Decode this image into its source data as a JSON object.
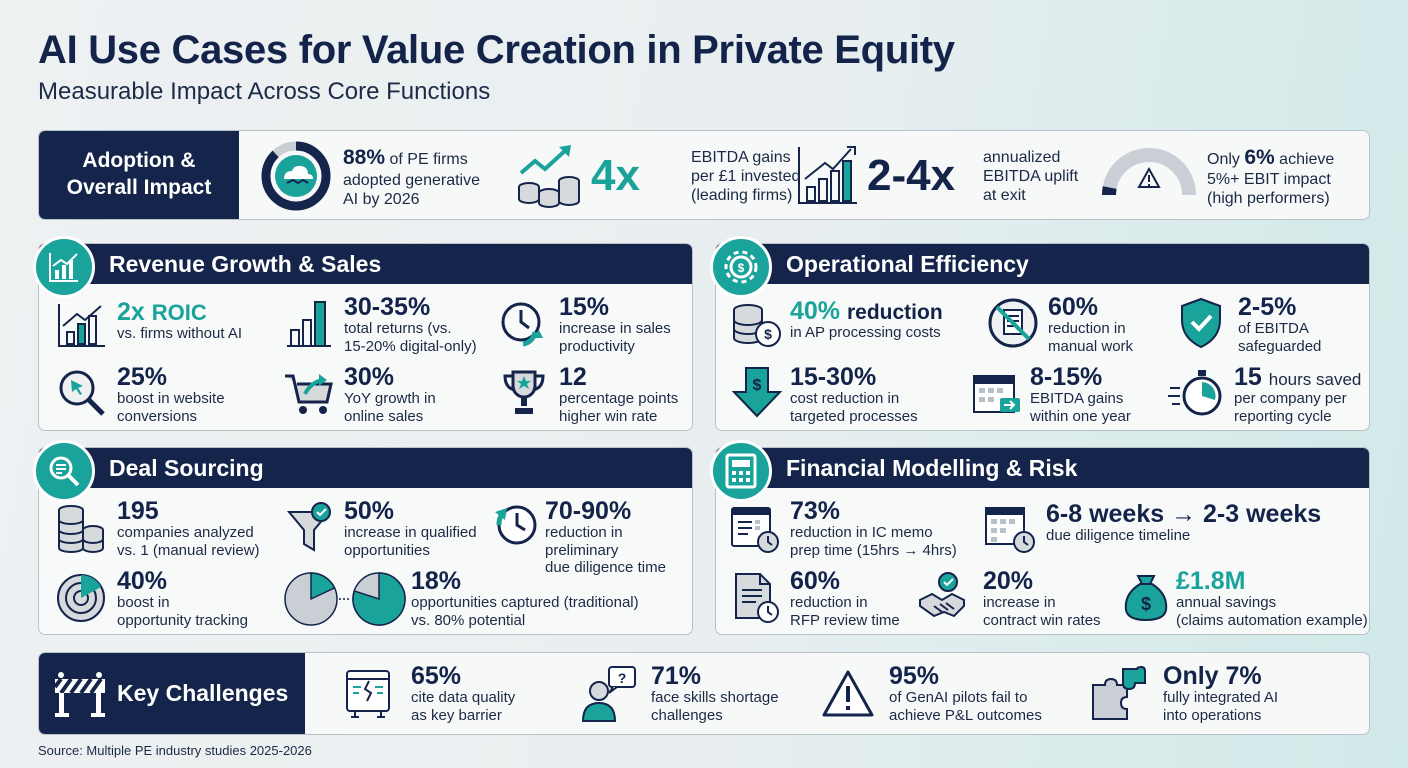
{
  "header": {
    "title": "AI Use Cases for Value Creation in Private Equity",
    "subtitle": "Measurable Impact Across Core Functions"
  },
  "colors": {
    "navy": "#14244a",
    "teal": "#1aa39a",
    "light": "#f8f9f9"
  },
  "adoption": {
    "label": "Adoption & Overall Impact",
    "stats": [
      {
        "icon": "cloud-handshake-icon",
        "value": "88%",
        "text_a": "of PE firms",
        "text_b": "adopted generative",
        "text_c": "AI by 2026",
        "progress": 0.88
      },
      {
        "icon": "coins-growth-icon",
        "value": "4x",
        "text_a": "EBITDA gains",
        "text_b": "per £1 invested",
        "text_c": "(leading firms)"
      },
      {
        "icon": "bar-chart-growth-icon",
        "value": "2-4x",
        "text_a": "annualized",
        "text_b": "EBITDA uplift",
        "text_c": "at exit"
      },
      {
        "icon": "warning-gauge-icon",
        "value_prefix": "Only",
        "value": "6%",
        "value_suffix": "achieve",
        "text_b": "5%+ EBIT impact",
        "text_c": "(high performers)",
        "progress": 0.06
      }
    ]
  },
  "revenue": {
    "title": "Revenue Growth & Sales",
    "items": [
      {
        "icon": "growth-chart-icon",
        "value": "2x",
        "value_b": "ROIC",
        "desc_a": "vs. firms without AI"
      },
      {
        "icon": "bar-chart-icon",
        "value": "30-35%",
        "desc_a": "total returns (vs.",
        "desc_b": "15-20% digital-only)"
      },
      {
        "icon": "clock-refresh-icon",
        "value": "15%",
        "desc_a": "increase in sales",
        "desc_b": "productivity"
      },
      {
        "icon": "magnifier-cursor-icon",
        "value": "25%",
        "desc_a": "boost in website",
        "desc_b": "conversions"
      },
      {
        "icon": "shopping-cart-icon",
        "value": "30%",
        "desc_a": "YoY growth in",
        "desc_b": "online sales"
      },
      {
        "icon": "trophy-icon",
        "value": "12",
        "desc_a": "percentage points",
        "desc_b": "higher win rate"
      }
    ]
  },
  "operations": {
    "title": "Operational Efficiency",
    "items": [
      {
        "icon": "coin-stack-dollar-icon",
        "value": "40%",
        "value_b": "reduction",
        "desc_a": "in AP processing costs"
      },
      {
        "icon": "no-paperwork-icon",
        "value": "60%",
        "desc_a": "reduction in",
        "desc_b": "manual work"
      },
      {
        "icon": "shield-check-icon",
        "value": "2-5%",
        "desc_a": "of EBITDA",
        "desc_b": "safeguarded"
      },
      {
        "icon": "dollar-down-icon",
        "value": "15-30%",
        "desc_a": "cost reduction in",
        "desc_b": "targeted processes"
      },
      {
        "icon": "calendar-arrow-icon",
        "value": "8-15%",
        "desc_a": "EBITDA gains",
        "desc_b": "within one year"
      },
      {
        "icon": "stopwatch-icon",
        "value": "15",
        "value_b": "hours saved",
        "desc_a": "per company per",
        "desc_b": "reporting cycle"
      }
    ]
  },
  "sourcing": {
    "title": "Deal Sourcing",
    "items": [
      {
        "icon": "coin-stacks-icon",
        "value": "195",
        "desc_a": "companies analyzed",
        "desc_b": "vs. 1 (manual review)"
      },
      {
        "icon": "funnel-check-icon",
        "value": "50%",
        "desc_a": "increase in qualified",
        "desc_b": "opportunities"
      },
      {
        "icon": "clock-rewind-icon",
        "value": "70-90%",
        "desc_a": "reduction in preliminary",
        "desc_b": "due diligence time"
      },
      {
        "icon": "radar-icon",
        "value": "40%",
        "desc_a": "boost in",
        "desc_b": "opportunity tracking"
      },
      {
        "icon": "pie-compare-icon",
        "value": "18%",
        "desc_a": "opportunities captured (traditional)",
        "desc_b": "vs. 80% potential",
        "pie_a": 0.18,
        "pie_b": 0.8
      }
    ]
  },
  "modelling": {
    "title": "Financial Modelling & Risk",
    "items": [
      {
        "icon": "memo-clock-icon",
        "value": "73%",
        "desc_a": "reduction in IC memo",
        "desc_b": "prep time (15hrs → 4hrs)"
      },
      {
        "icon": "calendar-clock-icon",
        "value": "6-8 weeks → 2-3 weeks",
        "desc_a": "due diligence timeline"
      },
      {
        "icon": "document-clock-icon",
        "value": "60%",
        "desc_a": "reduction in",
        "desc_b": "RFP review time"
      },
      {
        "icon": "handshake-check-icon",
        "value": "20%",
        "desc_a": "increase in",
        "desc_b": "contract win rates"
      },
      {
        "icon": "money-bag-icon",
        "value": "£1.8M",
        "desc_a": "annual savings",
        "desc_b": "(claims automation example)"
      }
    ]
  },
  "challenges": {
    "label": "Key Challenges",
    "items": [
      {
        "icon": "broken-data-icon",
        "value": "65%",
        "desc_a": "cite data quality",
        "desc_b": "as key barrier"
      },
      {
        "icon": "person-question-icon",
        "value": "71%",
        "desc_a": "face skills shortage",
        "desc_b": "challenges"
      },
      {
        "icon": "warning-triangle-icon",
        "value": "95%",
        "desc_a": "of GenAI pilots fail to",
        "desc_b": "achieve P&L outcomes"
      },
      {
        "icon": "puzzle-icon",
        "value": "Only 7%",
        "desc_a": "fully integrated AI",
        "desc_b": "into operations"
      }
    ]
  },
  "footer": {
    "source": "Source: Multiple PE industry studies 2025-2026"
  }
}
